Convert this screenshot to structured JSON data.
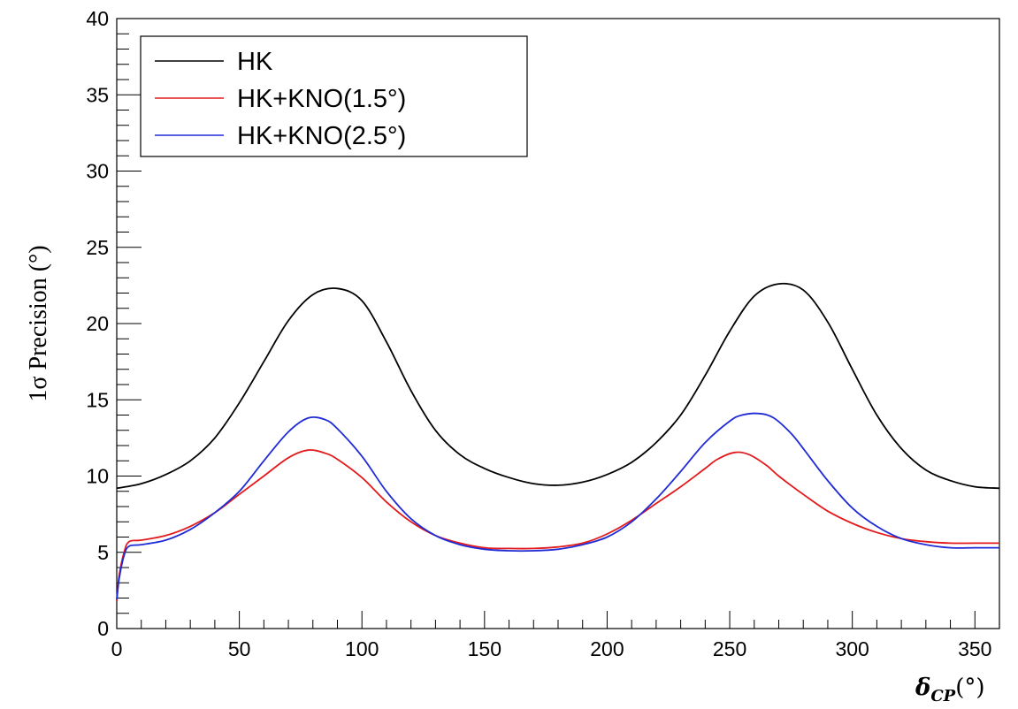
{
  "chart_data": {
    "type": "line",
    "xlabel": "δ",
    "xlabel_subscript": "CP",
    "xlabel_unit": "(°)",
    "ylabel": "1σ Precision (°)",
    "xlim": [
      0,
      360
    ],
    "ylim": [
      0,
      40
    ],
    "x_ticks": [
      "0",
      "50",
      "100",
      "150",
      "200",
      "250",
      "300",
      "350"
    ],
    "y_ticks": [
      "0",
      "5",
      "10",
      "15",
      "20",
      "25",
      "30",
      "35",
      "40"
    ],
    "grid": false,
    "legend_position": "top-left",
    "series": [
      {
        "name": "HK",
        "color": "#000000",
        "x": [
          0,
          10,
          20,
          30,
          40,
          50,
          60,
          70,
          80,
          90,
          100,
          110,
          120,
          130,
          140,
          150,
          160,
          170,
          180,
          190,
          200,
          210,
          220,
          230,
          240,
          250,
          260,
          270,
          280,
          290,
          300,
          310,
          320,
          330,
          340,
          350,
          360
        ],
        "y": [
          9.2,
          9.5,
          10.1,
          11.0,
          12.5,
          14.8,
          17.5,
          20.2,
          21.9,
          22.3,
          21.5,
          18.8,
          15.6,
          13.0,
          11.4,
          10.5,
          9.9,
          9.5,
          9.4,
          9.6,
          10.1,
          10.9,
          12.2,
          14.0,
          16.6,
          19.5,
          21.8,
          22.6,
          22.2,
          20.1,
          17.0,
          14.0,
          11.8,
          10.4,
          9.7,
          9.3,
          9.2
        ]
      },
      {
        "name": "HK+KNO(1.5°)",
        "color": "#e31a1c",
        "x": [
          0,
          1,
          3,
          5,
          10,
          20,
          30,
          40,
          50,
          60,
          70,
          78,
          85,
          90,
          100,
          110,
          120,
          130,
          140,
          150,
          160,
          170,
          180,
          190,
          200,
          210,
          220,
          230,
          240,
          245,
          252,
          258,
          265,
          270,
          280,
          290,
          300,
          310,
          320,
          330,
          340,
          350,
          360
        ],
        "y": [
          1.8,
          3.5,
          5.0,
          5.7,
          5.8,
          6.1,
          6.7,
          7.6,
          8.8,
          10.0,
          11.2,
          11.7,
          11.5,
          11.1,
          9.9,
          8.3,
          7.0,
          6.1,
          5.6,
          5.3,
          5.25,
          5.25,
          5.35,
          5.6,
          6.2,
          7.1,
          8.2,
          9.3,
          10.5,
          11.1,
          11.55,
          11.4,
          10.7,
          10.0,
          8.8,
          7.7,
          6.9,
          6.3,
          5.9,
          5.7,
          5.6,
          5.6,
          5.6
        ]
      },
      {
        "name": "HK+KNO(2.5°)",
        "color": "#1f2bd6",
        "x": [
          0,
          1,
          3,
          5,
          10,
          20,
          30,
          40,
          50,
          60,
          70,
          78,
          85,
          90,
          100,
          110,
          120,
          130,
          140,
          150,
          160,
          170,
          180,
          190,
          200,
          210,
          220,
          230,
          240,
          250,
          255,
          262,
          268,
          275,
          280,
          290,
          300,
          310,
          320,
          330,
          340,
          350,
          360
        ],
        "y": [
          1.9,
          3.3,
          4.8,
          5.4,
          5.5,
          5.8,
          6.5,
          7.6,
          9.0,
          11.0,
          12.9,
          13.8,
          13.7,
          13.1,
          11.3,
          9.0,
          7.2,
          6.1,
          5.5,
          5.2,
          5.1,
          5.1,
          5.2,
          5.5,
          6.0,
          7.0,
          8.5,
          10.3,
          12.2,
          13.6,
          14.0,
          14.1,
          13.8,
          12.8,
          11.8,
          9.7,
          7.9,
          6.7,
          5.9,
          5.5,
          5.3,
          5.3,
          5.3
        ]
      }
    ]
  }
}
